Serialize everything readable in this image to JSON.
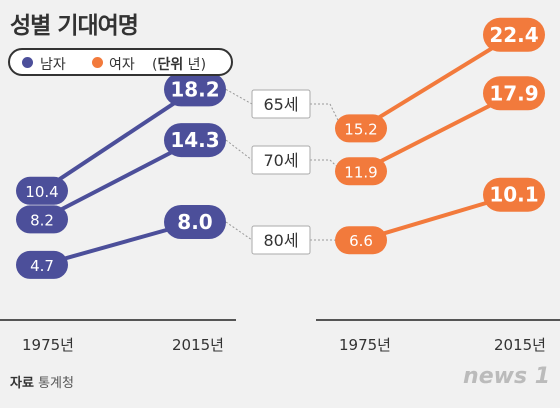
{
  "title": "성별 기대여명",
  "legend": {
    "male": "남자",
    "female": "여자",
    "unit_prefix": "(",
    "unit_bold": "단위",
    "unit_suffix": " 년)"
  },
  "source": {
    "label": "자료",
    "name": "통계청"
  },
  "logo": "news 1",
  "colors": {
    "male": "#4c4f9a",
    "female": "#f27a3c",
    "axis": "#555555",
    "connector": "#999999"
  },
  "chart_data": {
    "type": "line",
    "categories": [
      "1975년",
      "2015년"
    ],
    "groups": [
      "65세",
      "70세",
      "80세"
    ],
    "series": [
      {
        "name": "남자",
        "values_by_group": [
          [
            10.4,
            18.2
          ],
          [
            8.2,
            14.3
          ],
          [
            4.7,
            8.0
          ]
        ],
        "labels_by_group": [
          [
            "10.4",
            "18.2"
          ],
          [
            "8.2",
            "14.3"
          ],
          [
            "4.7",
            "8.0"
          ]
        ]
      },
      {
        "name": "여자",
        "values_by_group": [
          [
            15.2,
            22.4
          ],
          [
            11.9,
            17.9
          ],
          [
            6.6,
            10.1
          ]
        ],
        "labels_by_group": [
          [
            "15.2",
            "22.4"
          ],
          [
            "11.9",
            "17.9"
          ],
          [
            "6.6",
            "10.1"
          ]
        ]
      }
    ]
  }
}
